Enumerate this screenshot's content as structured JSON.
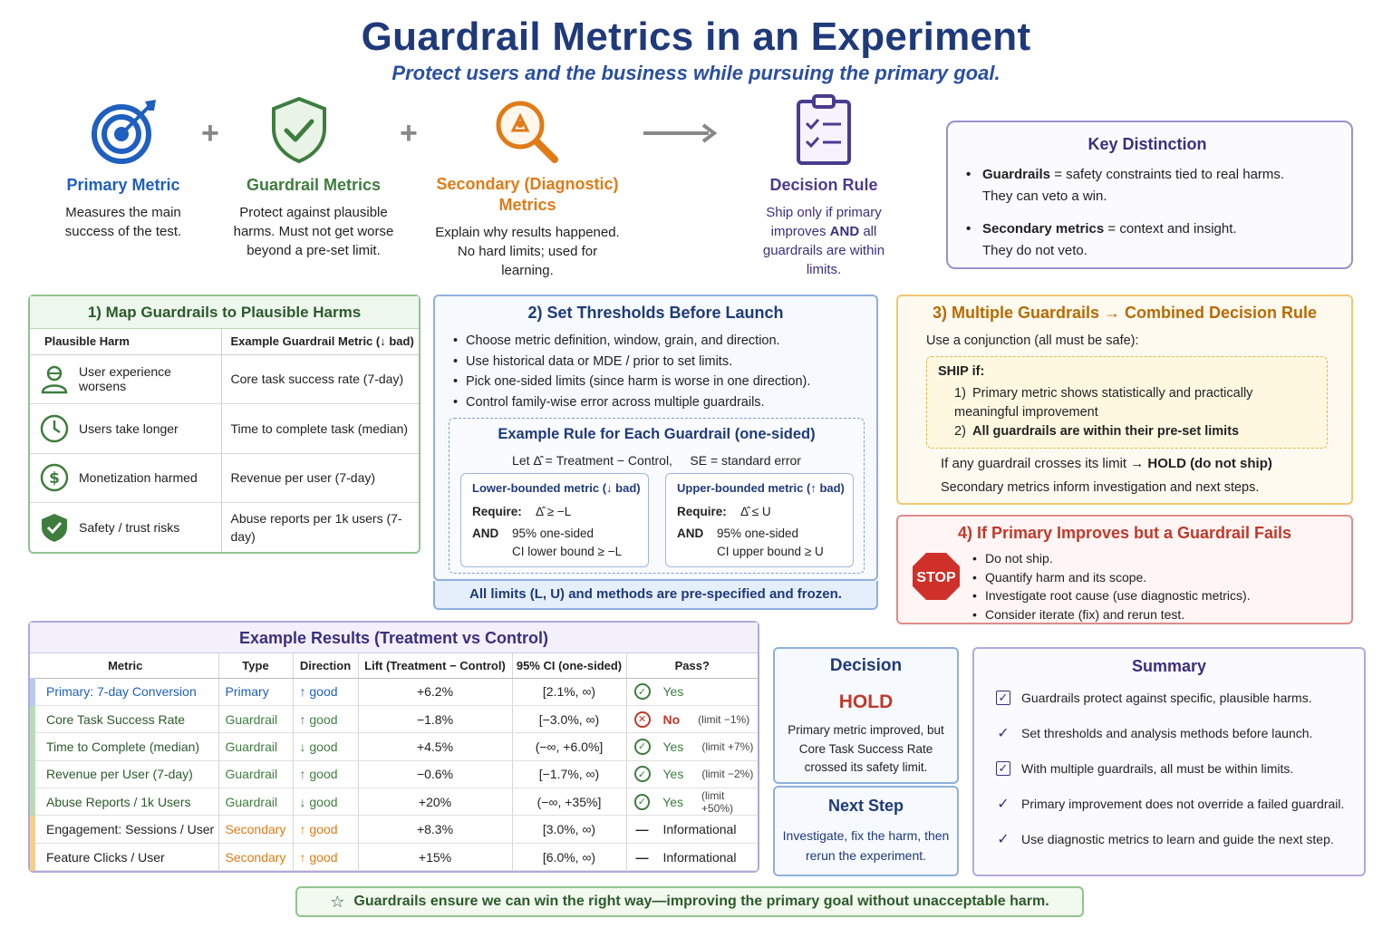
{
  "header": {
    "title": "Guardrail Metrics in an Experiment",
    "subtitle": "Protect users and the business while pursuing the primary goal."
  },
  "colors": {
    "primary": "#1f5fbf",
    "guardrail": "#3e7d3e",
    "secondary": "#e07b17",
    "decision": "#4b3b8f",
    "fail": "#c0392b"
  },
  "concepts": [
    {
      "title": "Primary Metric",
      "desc": "Measures the main success of the test.",
      "icon": "target-icon"
    },
    {
      "title": "Guardrail Metrics",
      "desc": "Protect against plausible harms. Must not get worse beyond a pre-set limit.",
      "icon": "shield-check-icon"
    },
    {
      "title": "Secondary (Diagnostic) Metrics",
      "desc": "Explain why results happened. No hard limits; used for learning.",
      "icon": "magnifier-icon"
    },
    {
      "title": "Decision Rule",
      "desc_pre": "Ship only if primary improves ",
      "desc_and": "AND",
      "desc_post": " all guardrails are within limits.",
      "icon": "checklist-icon"
    }
  ],
  "operators": {
    "plus": "+"
  },
  "key_distinction": {
    "title": "Key Distinction",
    "items": [
      {
        "term": "Guardrails",
        "text": " = safety constraints tied to real harms.",
        "line2": "They can veto a win."
      },
      {
        "term": "Secondary metrics",
        "text": " = context and insight.",
        "line2": "They do not veto."
      }
    ]
  },
  "map": {
    "title": "1) Map Guardrails to Plausible Harms",
    "headers": [
      "Plausible Harm",
      "Example Guardrail Metric (↓ bad)"
    ],
    "rows": [
      {
        "harm": "User experience worsens",
        "metric": "Core task success rate (7-day)",
        "icon": "user-icon"
      },
      {
        "harm": "Users take longer",
        "metric": "Time to complete task (median)",
        "icon": "clock-icon"
      },
      {
        "harm": "Monetization harmed",
        "metric": "Revenue per user (7-day)",
        "icon": "dollar-icon"
      },
      {
        "harm": "Safety / trust risks",
        "metric": "Abuse reports per 1k users (7-day)",
        "icon": "shield-icon"
      }
    ]
  },
  "thresholds": {
    "title": "2) Set Thresholds Before Launch",
    "bullets": [
      "Choose metric definition, window, grain, and direction.",
      "Use historical data or MDE / prior to set limits.",
      "Pick one-sided limits (since harm is worse in one direction).",
      "Control family-wise error across multiple guardrails."
    ],
    "example": {
      "title": "Example Rule for Each Guardrail (one-sided)",
      "let_line": "Let Δ̂ = Treatment − Control,     SE = standard error",
      "lower": {
        "title": "Lower-bounded metric (↓ bad)",
        "require_kw": "Require:",
        "require": "Δ̂ ≥ −L",
        "and_kw": "AND",
        "ci1": "95% one-sided",
        "ci2": "CI lower bound ≥ −L"
      },
      "upper": {
        "title": "Upper-bounded metric (↑ bad)",
        "require_kw": "Require:",
        "require": "Δ̂ ≤ U",
        "and_kw": "AND",
        "ci1": "95% one-sided",
        "ci2": "CI upper bound ≥ U"
      }
    },
    "footer": "All limits (L, U) and methods are pre-specified and frozen."
  },
  "combined": {
    "title": "3) Multiple Guardrails → Combined Decision Rule",
    "intro": "Use a conjunction (all must be safe):",
    "ship_label": "SHIP if:",
    "conditions": [
      {
        "num": "1)",
        "text": "Primary metric shows statistically and practically meaningful improvement"
      },
      {
        "num": "2)",
        "text": "All guardrails are within their pre-set limits"
      }
    ],
    "hold_pre": "If any guardrail crosses its limit ",
    "hold_strong": "→ HOLD (do not ship)",
    "secondary_note": "Secondary metrics inform investigation and next steps."
  },
  "fails": {
    "title": "4) If Primary Improves but a Guardrail Fails",
    "stop_label": "STOP",
    "bullets": [
      "Do not ship.",
      "Quantify harm and its scope.",
      "Investigate root cause (use diagnostic metrics).",
      "Consider iterate (fix) and rerun test."
    ]
  },
  "results": {
    "title": "Example Results (Treatment vs Control)",
    "headers": [
      "Metric",
      "Type",
      "Direction",
      "Lift (Treatment − Control)",
      "95% CI (one-sided)",
      "Pass?"
    ],
    "rows": [
      {
        "metric": "Primary: 7-day Conversion",
        "type": "Primary",
        "direction": "↑ good",
        "lift": "+6.2%",
        "ci": "[2.1%, ∞)",
        "status": "pass",
        "pass": "Yes",
        "limit": ""
      },
      {
        "metric": "Core Task Success Rate",
        "type": "Guardrail",
        "direction": "↑ good",
        "lift": "−1.8%",
        "ci": "[−3.0%, ∞)",
        "status": "fail",
        "pass": "No",
        "limit": "(limit −1%)"
      },
      {
        "metric": "Time to Complete (median)",
        "type": "Guardrail",
        "direction": "↓ good",
        "lift": "+4.5%",
        "ci": "(−∞, +6.0%]",
        "status": "pass",
        "pass": "Yes",
        "limit": "(limit +7%)"
      },
      {
        "metric": "Revenue per User (7-day)",
        "type": "Guardrail",
        "direction": "↑ good",
        "lift": "−0.6%",
        "ci": "[−1.7%, ∞)",
        "status": "pass",
        "pass": "Yes",
        "limit": "(limit −2%)"
      },
      {
        "metric": "Abuse Reports / 1k Users",
        "type": "Guardrail",
        "direction": "↓ good",
        "lift": "+20%",
        "ci": "(−∞, +35%]",
        "status": "pass",
        "pass": "Yes",
        "limit": "(limit +50%)"
      },
      {
        "metric": "Engagement: Sessions / User",
        "type": "Secondary",
        "direction": "↑ good",
        "lift": "+8.3%",
        "ci": "[3.0%, ∞)",
        "status": "info",
        "pass": "Informational",
        "limit": ""
      },
      {
        "metric": "Feature Clicks / User",
        "type": "Secondary",
        "direction": "↑ good",
        "lift": "+15%",
        "ci": "[6.0%, ∞)",
        "status": "info",
        "pass": "Informational",
        "limit": ""
      }
    ]
  },
  "decision": {
    "title": "Decision",
    "outcome": "HOLD",
    "explanation": "Primary metric improved, but Core Task Success Rate crossed its safety limit."
  },
  "next_step": {
    "title": "Next Step",
    "text": "Investigate, fix the harm, then rerun the experiment."
  },
  "summary": {
    "title": "Summary",
    "items": [
      "Guardrails protect against specific, plausible harms.",
      "Set thresholds and analysis methods before launch.",
      "With multiple guardrails, all must be within limits.",
      "Primary improvement does not override a failed guardrail.",
      "Use diagnostic metrics to learn and guide the next step."
    ]
  },
  "footer": {
    "text": "Guardrails ensure we can win the right way—improving the primary goal without unacceptable harm."
  }
}
